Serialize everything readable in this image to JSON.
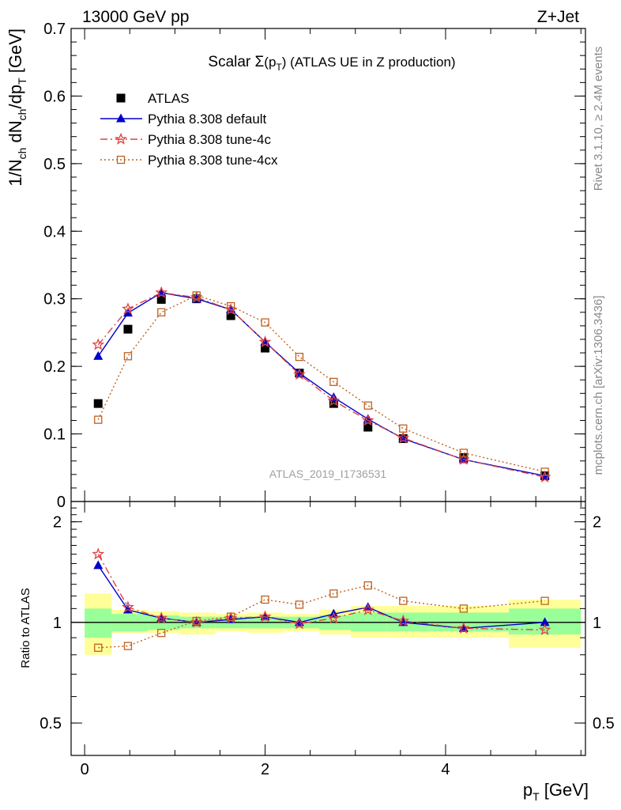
{
  "header": {
    "left": "13000 GeV pp",
    "right": "Z+Jet"
  },
  "side_labels": {
    "rivet": "Rivet 3.1.10, ≥ 2.4M events",
    "mcplots": "mcplots.cern.ch [arXiv:1306.3436]"
  },
  "chart_data": [
    {
      "type": "scatter",
      "panel": "main",
      "title": "Scalar Σ(p_T) (ATLAS UE in Z production)",
      "title_parts": {
        "prefix": "Scalar ",
        "sigma": "Σ",
        "p": "(p",
        "sub": "T",
        "suffix": ")",
        "rest": " (ATLAS UE in Z production)"
      },
      "ylabel": "1/N_ch dN_ch/dp_T [GeV]",
      "ylabel_parts": {
        "a": "1/N",
        "a_sub": "ch",
        "b": " dN",
        "b_sub": "ch",
        "c": "/dp",
        "c_sub": "T",
        "d": " [GeV]"
      },
      "watermark": "ATLAS_2019_I1736531",
      "xlim": [
        -0.15,
        5.55
      ],
      "ylim": [
        0,
        0.7
      ],
      "y_ticks": [
        0,
        0.1,
        0.2,
        0.3,
        0.4,
        0.5,
        0.6,
        0.7
      ],
      "y_tick_labels": [
        "0",
        "0.1",
        "0.2",
        "0.3",
        "0.4",
        "0.5",
        "0.6",
        "0.7"
      ],
      "legend_position": "top-left",
      "x": [
        0.15,
        0.48,
        0.85,
        1.24,
        1.62,
        2.0,
        2.38,
        2.76,
        3.14,
        3.53,
        4.2,
        5.1
      ],
      "series": [
        {
          "name": "ATLAS",
          "marker": "square",
          "color": "#000000",
          "line": "none",
          "values": [
            0.145,
            0.255,
            0.299,
            0.3,
            0.275,
            0.227,
            0.19,
            0.145,
            0.11,
            0.093,
            0.065,
            0.038
          ]
        },
        {
          "name": "Pythia 8.308 default",
          "marker": "triangle",
          "color": "#0000cc",
          "line": "solid",
          "values": [
            0.215,
            0.279,
            0.309,
            0.3,
            0.284,
            0.236,
            0.19,
            0.154,
            0.122,
            0.093,
            0.062,
            0.038
          ]
        },
        {
          "name": "Pythia 8.308 tune-4c",
          "marker": "star",
          "color": "#dd4444",
          "line": "dashdot",
          "values": [
            0.232,
            0.285,
            0.309,
            0.302,
            0.284,
            0.236,
            0.188,
            0.149,
            0.12,
            0.094,
            0.062,
            0.036
          ]
        },
        {
          "name": "Pythia 8.308 tune-4cx",
          "marker": "open-square",
          "color": "#c06020",
          "line": "dotted",
          "values": [
            0.121,
            0.215,
            0.28,
            0.305,
            0.289,
            0.265,
            0.214,
            0.177,
            0.142,
            0.108,
            0.072,
            0.044
          ]
        }
      ]
    },
    {
      "type": "scatter",
      "panel": "ratio",
      "ylabel": "Ratio to ATLAS",
      "xlabel": "p_T [GeV]",
      "xlabel_parts": {
        "p": "p",
        "sub": "T",
        "unit": " [GeV]"
      },
      "xlim": [
        -0.15,
        5.55
      ],
      "ylim": [
        0.4,
        2.3
      ],
      "y_scale": "log",
      "y_tick_labels": [
        "0.5",
        "1",
        "2"
      ],
      "y_ticks": [
        0.5,
        1,
        2
      ],
      "x_tick_labels": [
        "0",
        "2",
        "4"
      ],
      "x_ticks": [
        0,
        2,
        4
      ],
      "reference_line": 1,
      "uncertainty_band_colors": {
        "inner": "#99ff99",
        "outer": "#ffff99"
      },
      "bins": [
        {
          "lo": 0.0,
          "hi": 0.3,
          "inner": [
            0.9,
            1.1
          ],
          "outer": [
            0.8,
            1.22
          ]
        },
        {
          "lo": 0.3,
          "hi": 0.7,
          "inner": [
            0.94,
            1.06
          ],
          "outer": [
            0.93,
            1.09
          ]
        },
        {
          "lo": 0.7,
          "hi": 1.05,
          "inner": [
            0.95,
            1.05
          ],
          "outer": [
            0.93,
            1.08
          ]
        },
        {
          "lo": 1.05,
          "hi": 1.45,
          "inner": [
            0.96,
            1.04
          ],
          "outer": [
            0.92,
            1.07
          ]
        },
        {
          "lo": 1.45,
          "hi": 1.8,
          "inner": [
            0.96,
            1.04
          ],
          "outer": [
            0.94,
            1.06
          ]
        },
        {
          "lo": 1.8,
          "hi": 2.2,
          "inner": [
            0.96,
            1.04
          ],
          "outer": [
            0.93,
            1.07
          ]
        },
        {
          "lo": 2.2,
          "hi": 2.6,
          "inner": [
            0.96,
            1.04
          ],
          "outer": [
            0.94,
            1.06
          ]
        },
        {
          "lo": 2.6,
          "hi": 2.95,
          "inner": [
            0.95,
            1.05
          ],
          "outer": [
            0.92,
            1.09
          ]
        },
        {
          "lo": 2.95,
          "hi": 3.35,
          "inner": [
            0.94,
            1.07
          ],
          "outer": [
            0.9,
            1.12
          ]
        },
        {
          "lo": 3.35,
          "hi": 3.8,
          "inner": [
            0.94,
            1.07
          ],
          "outer": [
            0.9,
            1.12
          ]
        },
        {
          "lo": 3.8,
          "hi": 4.7,
          "inner": [
            0.94,
            1.07
          ],
          "outer": [
            0.9,
            1.12
          ]
        },
        {
          "lo": 4.7,
          "hi": 5.5,
          "inner": [
            0.92,
            1.1
          ],
          "outer": [
            0.84,
            1.17
          ]
        }
      ],
      "x": [
        0.15,
        0.48,
        0.85,
        1.24,
        1.62,
        2.0,
        2.38,
        2.76,
        3.14,
        3.53,
        4.2,
        5.1
      ],
      "series": [
        {
          "name": "Pythia 8.308 default",
          "marker": "triangle",
          "color": "#0000cc",
          "line": "solid",
          "values": [
            1.48,
            1.09,
            1.03,
            1.0,
            1.02,
            1.04,
            1.0,
            1.06,
            1.11,
            1.0,
            0.96,
            1.0
          ]
        },
        {
          "name": "Pythia 8.308 tune-4c",
          "marker": "star",
          "color": "#dd4444",
          "line": "dashdot",
          "values": [
            1.6,
            1.11,
            1.03,
            1.0,
            1.03,
            1.04,
            0.99,
            1.03,
            1.09,
            1.01,
            0.96,
            0.95
          ]
        },
        {
          "name": "Pythia 8.308 tune-4cx",
          "marker": "open-square",
          "color": "#c06020",
          "line": "dotted",
          "values": [
            0.84,
            0.85,
            0.93,
            1.01,
            1.04,
            1.17,
            1.13,
            1.22,
            1.29,
            1.16,
            1.1,
            1.16
          ]
        }
      ]
    }
  ]
}
